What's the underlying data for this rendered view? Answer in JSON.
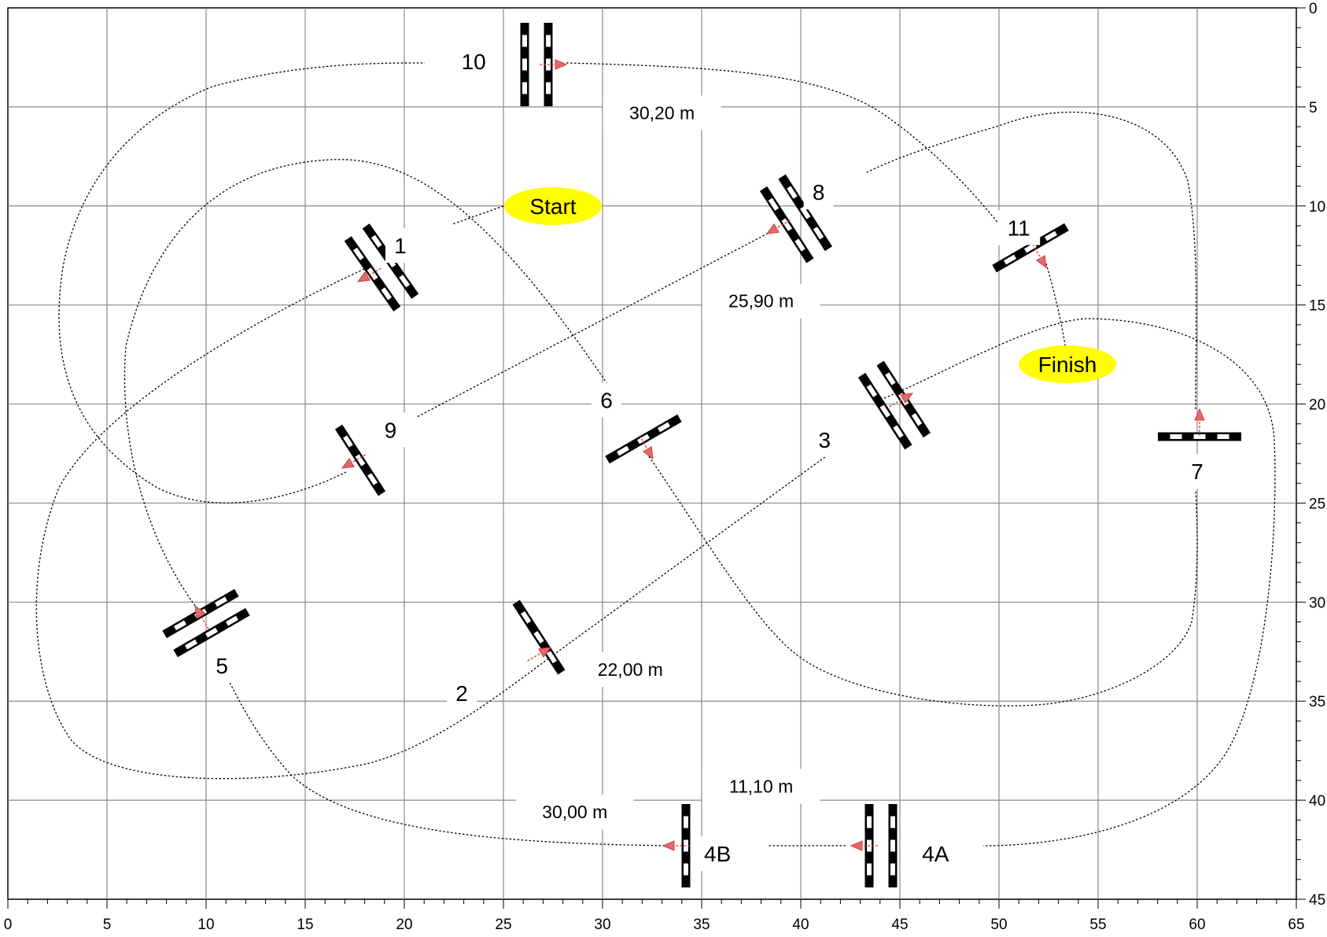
{
  "axes": {
    "x_ticks": [
      "0",
      "5",
      "10",
      "15",
      "20",
      "25",
      "30",
      "35",
      "40",
      "45",
      "50",
      "55",
      "60",
      "65"
    ],
    "y_ticks": [
      "0",
      "5",
      "10",
      "15",
      "20",
      "25",
      "30",
      "35",
      "40",
      "45"
    ],
    "x_range": [
      0,
      65
    ],
    "y_range": [
      0,
      45
    ],
    "grid": true,
    "minor_tick_step": 1
  },
  "markers": {
    "start": "Start",
    "finish": "Finish",
    "color": "#ffff00"
  },
  "obstacle_labels": [
    {
      "id": "1",
      "text": "1",
      "x": 19.8,
      "y": 12.0
    },
    {
      "id": "2",
      "text": "2",
      "x": 22.9,
      "y": 34.6
    },
    {
      "id": "3",
      "text": "3",
      "x": 41.2,
      "y": 21.8
    },
    {
      "id": "4A",
      "text": "4A",
      "x": 46.8,
      "y": 42.7
    },
    {
      "id": "4B",
      "text": "4B",
      "x": 35.8,
      "y": 42.7
    },
    {
      "id": "5",
      "text": "5",
      "x": 10.8,
      "y": 33.2
    },
    {
      "id": "6",
      "text": "6",
      "x": 30.2,
      "y": 19.8
    },
    {
      "id": "7",
      "text": "7",
      "x": 60.0,
      "y": 23.4
    },
    {
      "id": "8",
      "text": "8",
      "x": 40.9,
      "y": 9.3
    },
    {
      "id": "9",
      "text": "9",
      "x": 19.3,
      "y": 21.3
    },
    {
      "id": "10",
      "text": "10",
      "x": 23.5,
      "y": 2.7
    },
    {
      "id": "11",
      "text": "11",
      "x": 51.0,
      "y": 11.1
    }
  ],
  "distance_labels": [
    {
      "text": "30,20 m",
      "x": 33.0,
      "y": 5.3
    },
    {
      "text": "25,90 m",
      "x": 38.0,
      "y": 14.8
    },
    {
      "text": "22,00 m",
      "x": 31.4,
      "y": 33.4
    },
    {
      "text": "11,10 m",
      "x": 38.0,
      "y": 39.3
    },
    {
      "text": "30,00 m",
      "x": 28.6,
      "y": 40.6
    }
  ],
  "line_color": "#000000",
  "arrow_color": "#d9383a"
}
